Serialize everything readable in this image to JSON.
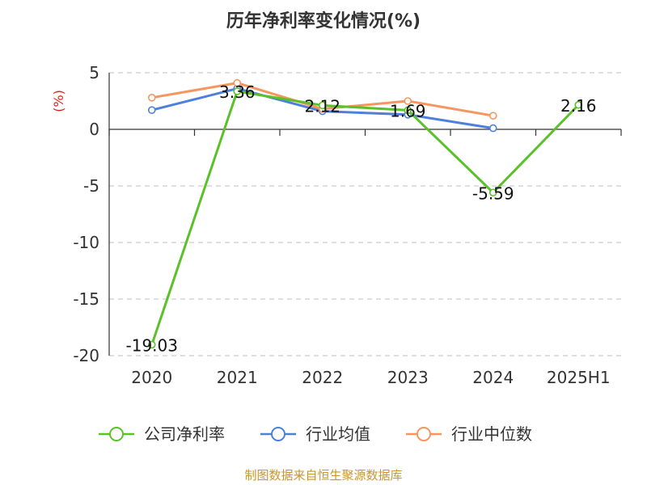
{
  "chart_data": {
    "type": "line",
    "title": "历年净利率变化情况(%)",
    "ylabel": "(%)",
    "xlabel": "",
    "categories": [
      "2020",
      "2021",
      "2022",
      "2023",
      "2024",
      "2025H1"
    ],
    "ylim": [
      -20,
      5
    ],
    "yticks": [
      5,
      0,
      -5,
      -10,
      -15,
      -20
    ],
    "grid": "dashed-horizontal",
    "legend_position": "bottom",
    "series": [
      {
        "name": "公司净利率",
        "color": "#5ac12a",
        "values": [
          -19.03,
          3.36,
          2.12,
          1.69,
          -5.59,
          2.16
        ],
        "labels": [
          "-19.03",
          "3.36",
          "2.12",
          "1.69",
          "-5.59",
          "2.16"
        ]
      },
      {
        "name": "行业均值",
        "color": "#4f7fdc",
        "values": [
          1.7,
          3.6,
          1.6,
          1.3,
          0.1,
          null
        ]
      },
      {
        "name": "行业中位数",
        "color": "#f69560",
        "values": [
          2.8,
          4.1,
          1.8,
          2.5,
          1.2,
          null
        ]
      }
    ]
  },
  "source": "制图数据来自恒生聚源数据库"
}
